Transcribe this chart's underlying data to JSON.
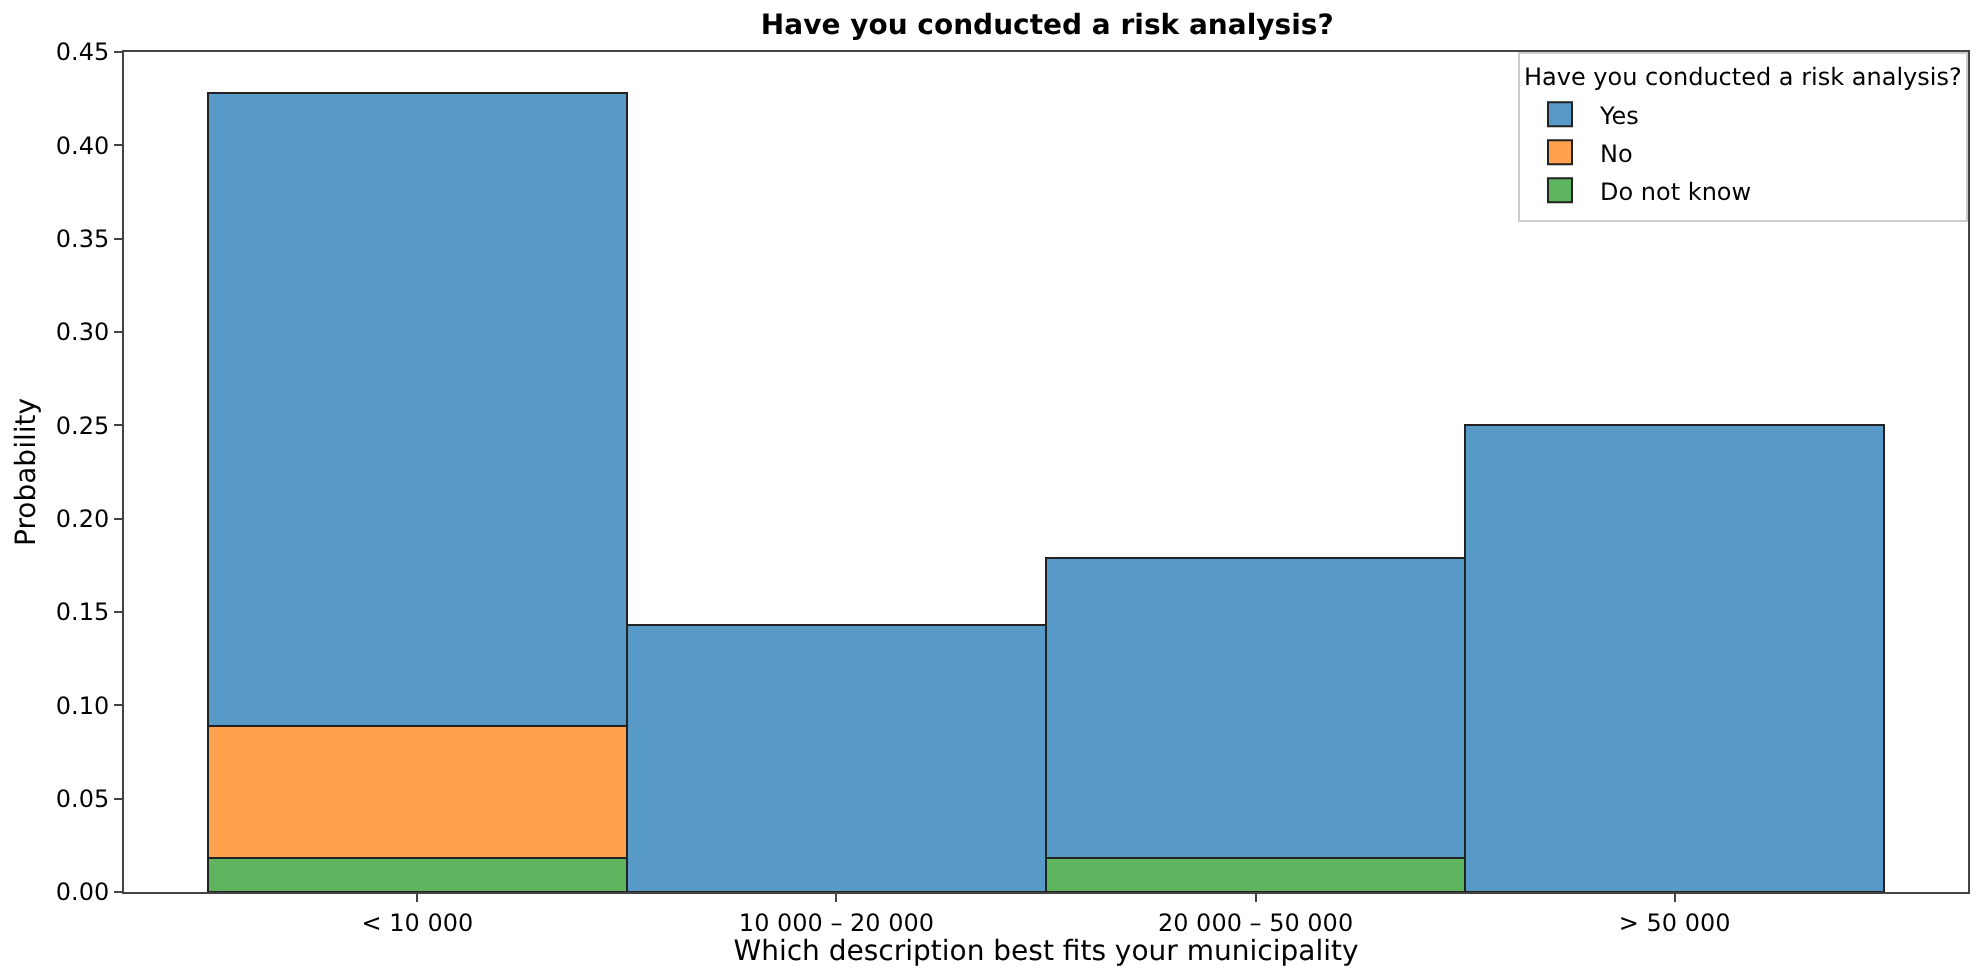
{
  "chart_data": {
    "type": "bar",
    "title": "Have you conducted a risk analysis?",
    "xlabel": "Which description best fits your municipality",
    "ylabel": "Probability",
    "legend_title": "Have you conducted a risk analysis?",
    "categories": [
      "< 10 000",
      "10 000 – 20 000",
      "20 000 – 50 000",
      "> 50 000"
    ],
    "stacked": true,
    "series": [
      {
        "name": "Do not know",
        "color": "#5fb55f",
        "values": [
          0.018,
          null,
          0.018,
          null
        ]
      },
      {
        "name": "No",
        "color": "#ffa24d",
        "values": [
          0.071,
          null,
          null,
          null
        ]
      },
      {
        "name": "Yes",
        "color": "#5799c7",
        "values": [
          0.339,
          0.143,
          0.161,
          0.25
        ]
      }
    ],
    "ylim": [
      0,
      0.45
    ],
    "yticks": [
      {
        "value": 0,
        "label": "0.00"
      },
      {
        "value": 0.05,
        "label": "0.05"
      },
      {
        "value": 0.1,
        "label": "0.10"
      },
      {
        "value": 0.15,
        "label": "0.15"
      },
      {
        "value": 0.2,
        "label": "0.20"
      },
      {
        "value": 0.25,
        "label": "0.25"
      },
      {
        "value": 0.3,
        "label": "0.30"
      },
      {
        "value": 0.35,
        "label": "0.35"
      },
      {
        "value": 0.4,
        "label": "0.40"
      },
      {
        "value": 0.45,
        "label": "0.45"
      }
    ],
    "grid": false,
    "legend": "top right"
  }
}
